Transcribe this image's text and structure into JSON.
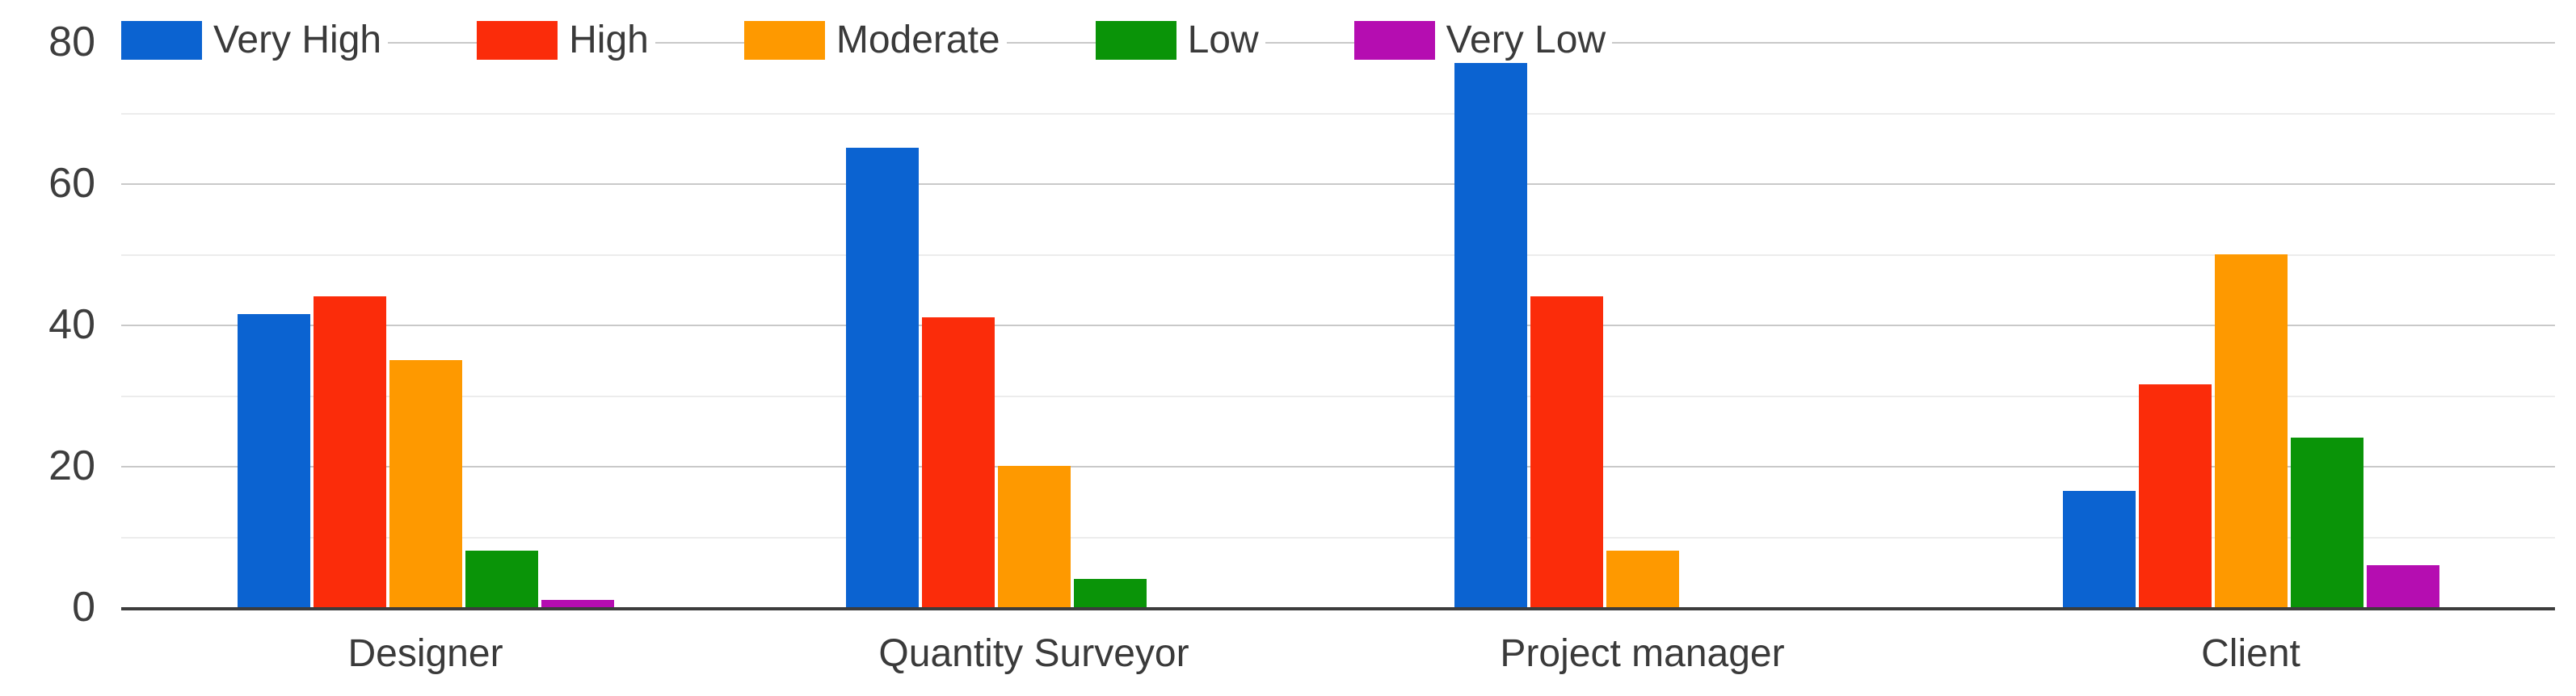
{
  "chart_data": {
    "type": "bar",
    "title": "",
    "xlabel": "",
    "ylabel": "",
    "categories": [
      "Designer",
      "Quantity Surveyor",
      "Project manager",
      "Client"
    ],
    "series": [
      {
        "name": "Very High",
        "color": "#0b63d1",
        "values": [
          41.5,
          65,
          77,
          16.5
        ]
      },
      {
        "name": "High",
        "color": "#fb2c0a",
        "values": [
          44,
          41,
          44,
          31.5
        ]
      },
      {
        "name": "Moderate",
        "color": "#fe9900",
        "values": [
          35,
          20,
          8,
          50
        ]
      },
      {
        "name": "Low",
        "color": "#0a9408",
        "values": [
          8,
          4,
          0,
          24
        ]
      },
      {
        "name": "Very Low",
        "color": "#b50db1",
        "values": [
          1,
          0,
          0,
          6
        ]
      }
    ],
    "ylim": [
      0,
      80
    ],
    "yticks": [
      0,
      20,
      40,
      60,
      80
    ],
    "gridline_step": 10,
    "grid": true,
    "legend_position": "top"
  },
  "colors": {
    "background": "#ffffff",
    "axis_text": "#3d3d3d",
    "label_text": "#3a3a3a",
    "gridline_minor": "#ececec",
    "gridline_major": "#c9c9c9",
    "baseline": "#3c3c3c"
  }
}
